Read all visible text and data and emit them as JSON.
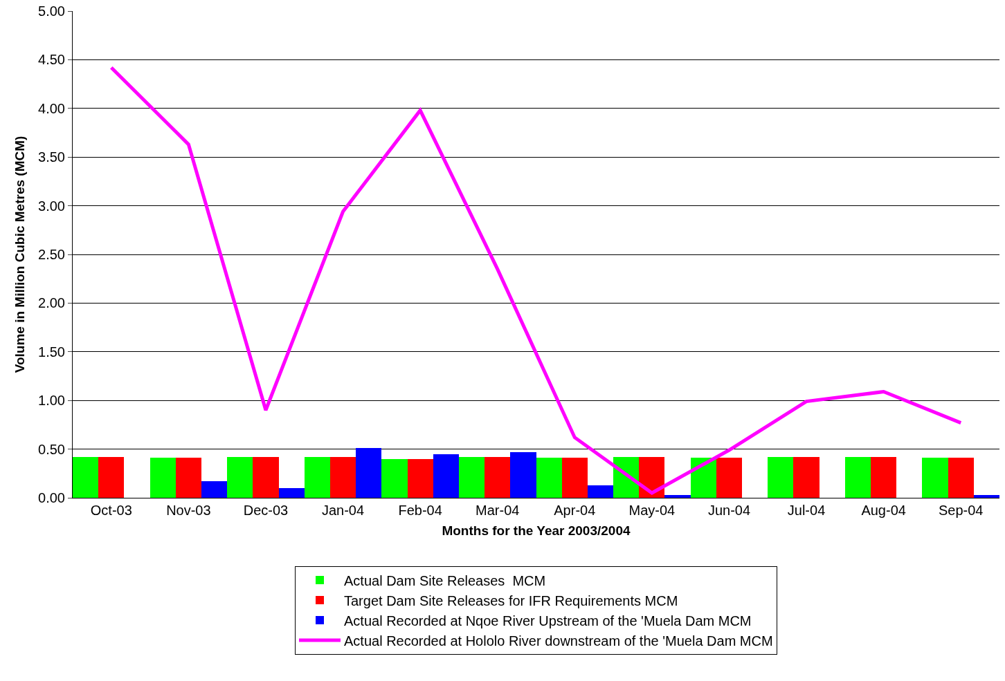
{
  "chart_data": {
    "type": "bar",
    "xlabel": "Months for the Year 2003/2004",
    "ylabel": "Volume in Million Cubic Metres (MCM)",
    "categories": [
      "Oct-03",
      "Nov-03",
      "Dec-03",
      "Jan-04",
      "Feb-04",
      "Mar-04",
      "Apr-04",
      "May-04",
      "Jun-04",
      "Jul-04",
      "Aug-04",
      "Sep-04"
    ],
    "series": [
      {
        "name": "Actual Dam Site Releases  MCM",
        "color": "#00ff00",
        "values": [
          0.42,
          0.41,
          0.42,
          0.42,
          0.4,
          0.42,
          0.41,
          0.42,
          0.41,
          0.42,
          0.42,
          0.41
        ]
      },
      {
        "name": "Target Dam Site Releases for IFR Requirements MCM",
        "color": "#ff0000",
        "values": [
          0.42,
          0.41,
          0.42,
          0.42,
          0.4,
          0.42,
          0.41,
          0.42,
          0.41,
          0.42,
          0.42,
          0.41
        ]
      },
      {
        "name": "Actual Recorded at Nqoe River Upstream of the 'Muela Dam MCM",
        "color": "#0000ff",
        "values": [
          0,
          0.17,
          0.1,
          0.51,
          0.45,
          0.47,
          0.13,
          0.03,
          0,
          0,
          0,
          0.03
        ]
      },
      {
        "name": "Actual Recorded at Hololo River downstream of the 'Muela Dam MCM",
        "type": "line",
        "color": "#ff00ff",
        "values": [
          4.42,
          3.63,
          0.9,
          2.94,
          3.98,
          2.35,
          0.62,
          0.05,
          0.49,
          0.99,
          1.09,
          0.77
        ]
      }
    ],
    "ylim": [
      0,
      5
    ],
    "yticks": [
      {
        "value": 0,
        "label": "0.00"
      },
      {
        "value": 0.5,
        "label": "0.50"
      },
      {
        "value": 1,
        "label": "1.00"
      },
      {
        "value": 1.5,
        "label": "1.50"
      },
      {
        "value": 2,
        "label": "2.00"
      },
      {
        "value": 2.5,
        "label": "2.50"
      },
      {
        "value": 3,
        "label": "3.00"
      },
      {
        "value": 3.5,
        "label": "3.50"
      },
      {
        "value": 4,
        "label": "4.00"
      },
      {
        "value": 4.5,
        "label": "4.50"
      },
      {
        "value": 5,
        "label": "5.00"
      }
    ],
    "grid": "y",
    "legend": "bottom",
    "marker": "none",
    "line_style": "solid"
  }
}
